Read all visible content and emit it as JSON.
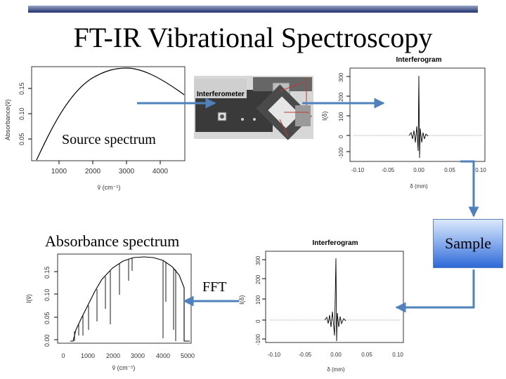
{
  "slide": {
    "title": "FT-IR Vibrational Spectroscopy",
    "labels": {
      "source": "Source spectrum",
      "absorbance": "Absorbance spectrum",
      "sample": "Sample",
      "fft": "FFT"
    }
  },
  "plots": {
    "source": {
      "ylabel": "Absorbance(ṽ)",
      "xlabel": "ṽ (cm⁻¹)",
      "xticks": [
        "1000",
        "2000",
        "3000",
        "4000"
      ],
      "yticks": [
        "0.05",
        "0.10",
        "0.15"
      ]
    },
    "interferometer": {
      "label": "Interferometer"
    },
    "interferogram_top": {
      "title": "Interferogram",
      "ylabel": "I(δ)",
      "xlabel": "δ (mm)",
      "xticks": [
        "-0.10",
        "-0.05",
        "0.00",
        "0.05",
        "0.10"
      ],
      "yticks": [
        "-100",
        "0",
        "100",
        "200",
        "300"
      ]
    },
    "absorbance": {
      "ylabel": "I(ṽ)",
      "xlabel": "ṽ (cm⁻¹)",
      "xticks": [
        "0",
        "1000",
        "2000",
        "3000",
        "4000",
        "5000"
      ],
      "yticks": [
        "0.00",
        "0.05",
        "0.10",
        "0.15"
      ]
    },
    "interferogram_bottom": {
      "title": "Interferogram",
      "ylabel": "I(δ)",
      "xlabel": "δ (mm)",
      "xticks": [
        "-0.10",
        "-0.05",
        "0.00",
        "0.05",
        "0.10"
      ],
      "yticks": [
        "-100",
        "0",
        "100",
        "200",
        "300"
      ]
    }
  },
  "colors": {
    "arrow": "#4f81bd",
    "header_bar": "#1d2f6e",
    "sample_box": "#2e69d8"
  }
}
